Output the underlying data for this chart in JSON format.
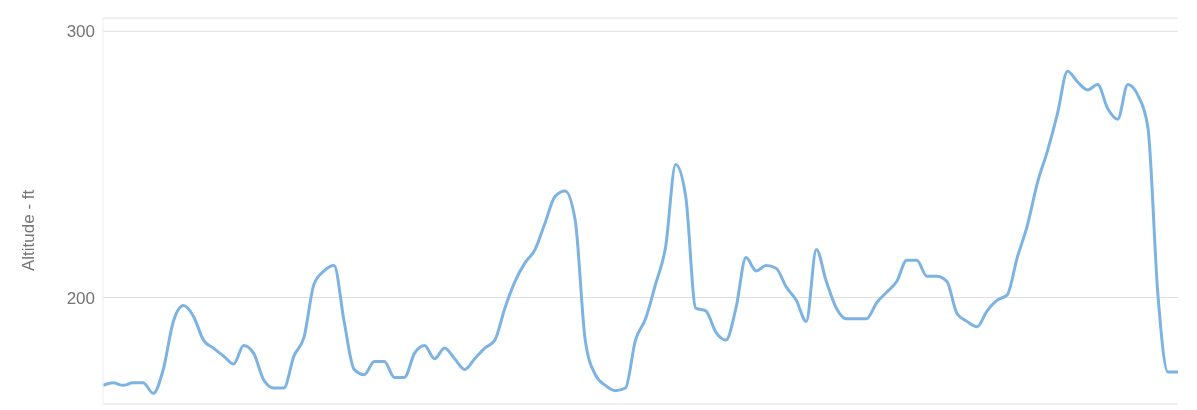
{
  "chart_data": {
    "type": "line",
    "ylabel": "Altitude - ft",
    "ylim": [
      160,
      305
    ],
    "yticks": [
      200,
      300
    ],
    "grid": "y",
    "marker": "none",
    "line_style": "solid",
    "categories": [
      null,
      null,
      null,
      null,
      null,
      null,
      null,
      null,
      null,
      null,
      null,
      null,
      null,
      null,
      null,
      null,
      null,
      null,
      null,
      null,
      null,
      null,
      null,
      null,
      null,
      null,
      null,
      null,
      null,
      null,
      null,
      null,
      null,
      null,
      null,
      null,
      null,
      null,
      null,
      null,
      null,
      null,
      null,
      null,
      null,
      null,
      null,
      null,
      null,
      null,
      null,
      null,
      null,
      null,
      null,
      null,
      null,
      null,
      null,
      null,
      null,
      null,
      null,
      null,
      null,
      null,
      null,
      null,
      null,
      null,
      null,
      null,
      null,
      null,
      null,
      null,
      null,
      null,
      null,
      null,
      null,
      null,
      null,
      null,
      null,
      null,
      null,
      null,
      null,
      null,
      null,
      null,
      null,
      null,
      null,
      null,
      null,
      null,
      null,
      null,
      null,
      null,
      null,
      null,
      null,
      null,
      null,
      null
    ],
    "series": [
      {
        "color": "#7cb3e2",
        "values": [
          167,
          168,
          167,
          168,
          168,
          164,
          173,
          191,
          197,
          193,
          184,
          181,
          178,
          175,
          182,
          179,
          169,
          166,
          166,
          178,
          185,
          205,
          210,
          212,
          191,
          173,
          171,
          176,
          176,
          170,
          170,
          179,
          182,
          177,
          181,
          177,
          173,
          177,
          181,
          184,
          196,
          206,
          213,
          218,
          228,
          238,
          240,
          229,
          184,
          171,
          167,
          165,
          166,
          184,
          192,
          205,
          219,
          250,
          238,
          196,
          195,
          187,
          184,
          196,
          215,
          210,
          212,
          211,
          204,
          199,
          191,
          218,
          206,
          196,
          192,
          192,
          192,
          198,
          202,
          206,
          214,
          214,
          208,
          208,
          206,
          194,
          191,
          189,
          195,
          199,
          201,
          215,
          227,
          243,
          255,
          269,
          285,
          281,
          278,
          280,
          271,
          267,
          280,
          276,
          264,
          201,
          172,
          172
        ]
      }
    ]
  }
}
